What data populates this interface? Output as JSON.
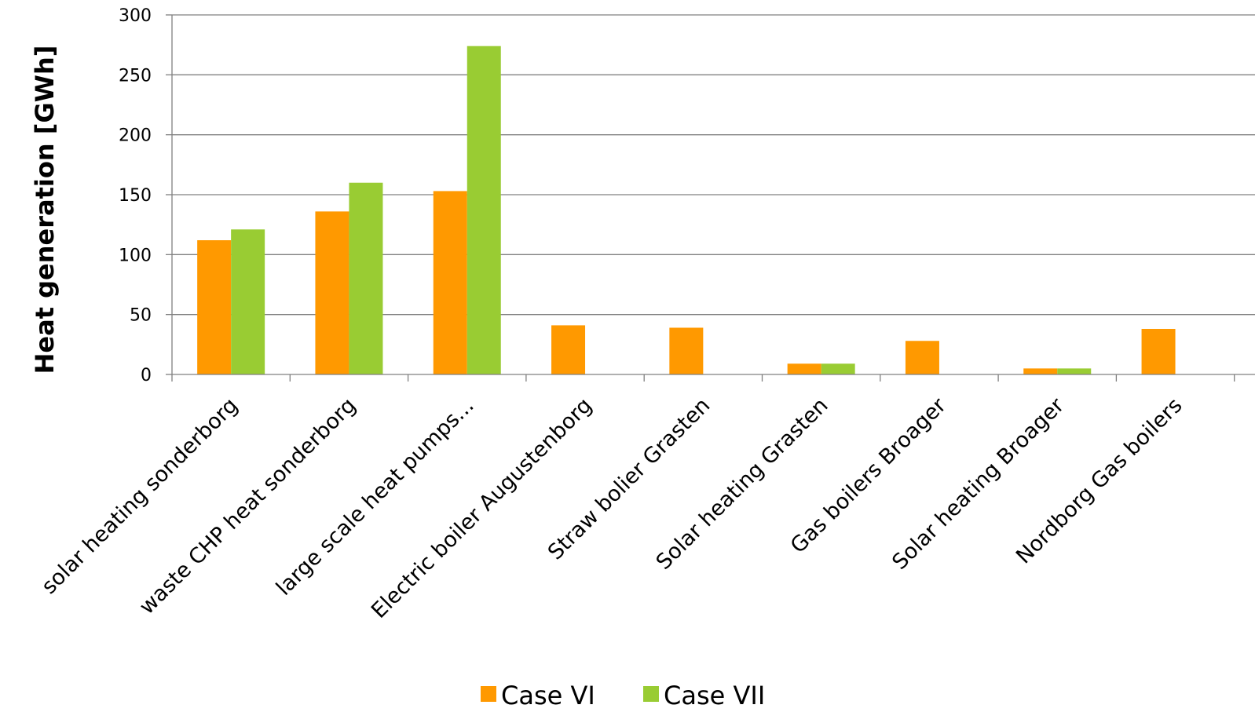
{
  "chart_data": {
    "type": "bar",
    "title": "",
    "xlabel": "",
    "ylabel": "Heat generation [GWh]",
    "ylim": [
      0,
      300
    ],
    "yticks": [
      0,
      50,
      100,
      150,
      200,
      250,
      300
    ],
    "grid": true,
    "legend_position": "bottom",
    "categories": [
      "solar heating sonderborg",
      "waste CHP heat sonderborg",
      "large scale heat pumps...",
      "Electric boiler Augustenborg",
      "Straw bolier Grasten",
      "Solar heating Grasten",
      "Gas boilers Broager",
      "Solar heating Broager",
      "Nordborg Gas boilers"
    ],
    "series": [
      {
        "name": "Case VI",
        "color": "#ff9900",
        "values": [
          112,
          136,
          153,
          41,
          39,
          9,
          28,
          5,
          38
        ]
      },
      {
        "name": "Case VII",
        "color": "#99cc33",
        "values": [
          121,
          160,
          274,
          0,
          0,
          9,
          0,
          5,
          0
        ]
      }
    ]
  }
}
